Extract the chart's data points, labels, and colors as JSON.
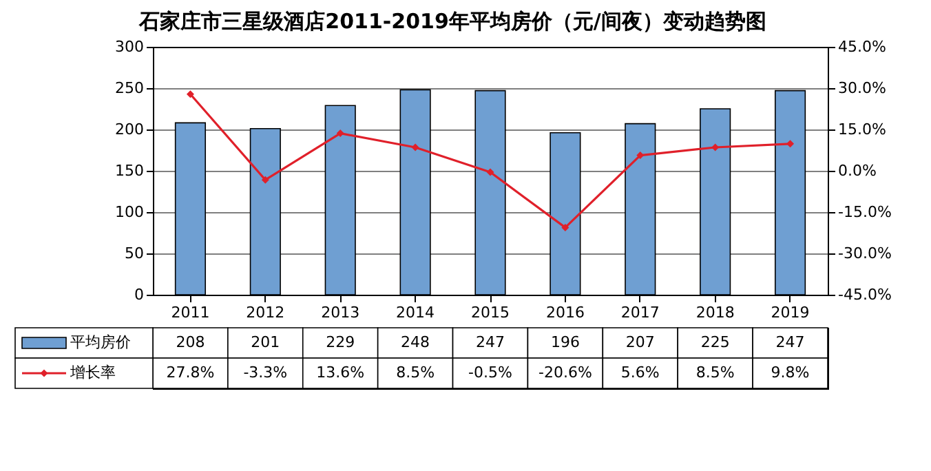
{
  "chart_data": {
    "type": "bar",
    "title": "石家庄市三星级酒店2011-2019年平均房价（元/间夜）变动趋势图",
    "categories": [
      "2011",
      "2012",
      "2013",
      "2014",
      "2015",
      "2016",
      "2017",
      "2018",
      "2019"
    ],
    "series": [
      {
        "name": "平均房价",
        "color": "#6f9fd2",
        "values": [
          208,
          201,
          229,
          248,
          247,
          196,
          207,
          225,
          247
        ],
        "value_labels": [
          "208",
          "201",
          "229",
          "248",
          "247",
          "196",
          "207",
          "225",
          "247"
        ]
      },
      {
        "name": "增长率",
        "type": "line",
        "axis": "y2",
        "color": "#e0202a",
        "marker": "diamond",
        "values": [
          27.8,
          -3.3,
          13.6,
          8.5,
          -0.5,
          -20.6,
          5.6,
          8.5,
          9.8
        ],
        "value_labels": [
          "27.8%",
          "-3.3%",
          "13.6%",
          "8.5%",
          "-0.5%",
          "-20.6%",
          "5.6%",
          "8.5%",
          "9.8%"
        ]
      }
    ],
    "ylim": [
      0,
      300
    ],
    "yticks": [
      0,
      50,
      100,
      150,
      200,
      250,
      300
    ],
    "y2lim": [
      -45,
      45
    ],
    "y2ticks": [
      {
        "value": 45,
        "label": "45.0%"
      },
      {
        "value": 30,
        "label": "30.0%"
      },
      {
        "value": 15,
        "label": "15.0%"
      },
      {
        "value": 0,
        "label": "0.0%"
      },
      {
        "value": -15,
        "label": "-15.0%"
      },
      {
        "value": -30,
        "label": "-30.0%"
      },
      {
        "value": -45,
        "label": "-45.0%"
      }
    ],
    "grid": "y",
    "legend": "bottom"
  }
}
